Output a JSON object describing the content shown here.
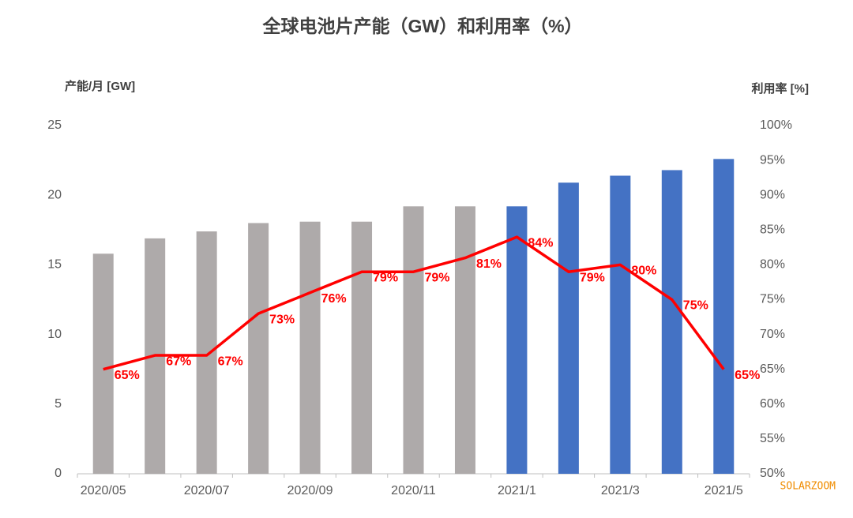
{
  "chart_data": {
    "type": "bar-line",
    "title": "全球电池片产能（GW）和利用率（%）",
    "y_label": "产能/月 [GW]",
    "y2_label": "利用率 [%]",
    "watermark": "SOLARZOOM",
    "categories": [
      "2020/05",
      null,
      "2020/07",
      null,
      "2020/09",
      null,
      "2020/11",
      null,
      "2021/1",
      null,
      "2021/3",
      null,
      "2021/5"
    ],
    "ylim": [
      0,
      25
    ],
    "yticks": [
      0,
      5,
      10,
      15,
      20,
      25
    ],
    "y2lim": [
      50,
      100
    ],
    "y2ticks": [
      {
        "value": 50,
        "label": "50%"
      },
      {
        "value": 55,
        "label": "55%"
      },
      {
        "value": 60,
        "label": "60%"
      },
      {
        "value": 65,
        "label": "65%"
      },
      {
        "value": 70,
        "label": "70%"
      },
      {
        "value": 75,
        "label": "75%"
      },
      {
        "value": 80,
        "label": "80%"
      },
      {
        "value": 85,
        "label": "85%"
      },
      {
        "value": 90,
        "label": "90%"
      },
      {
        "value": 95,
        "label": "95%"
      },
      {
        "value": 100,
        "label": "100%"
      }
    ],
    "series": [
      {
        "type": "bar",
        "values": [
          15.8,
          16.9,
          17.4,
          18.0,
          18.1,
          18.1,
          19.2,
          19.2,
          19.2,
          20.9,
          21.4,
          21.8,
          22.6
        ],
        "colors": [
          "#aeaaaa",
          "#aeaaaa",
          "#aeaaaa",
          "#aeaaaa",
          "#aeaaaa",
          "#aeaaaa",
          "#aeaaaa",
          "#aeaaaa",
          "#4472c4",
          "#4472c4",
          "#4472c4",
          "#4472c4",
          "#4472c4"
        ]
      },
      {
        "type": "line",
        "axis": "y2",
        "color": "#ff0000",
        "values": [
          65,
          67,
          67,
          73,
          76,
          79,
          79,
          81,
          84,
          79,
          80,
          75,
          65
        ],
        "value_labels": [
          "65%",
          "67%",
          "67%",
          "73%",
          "76%",
          "79%",
          "79%",
          "81%",
          "84%",
          "79%",
          "80%",
          "75%",
          "65%"
        ]
      }
    ]
  }
}
